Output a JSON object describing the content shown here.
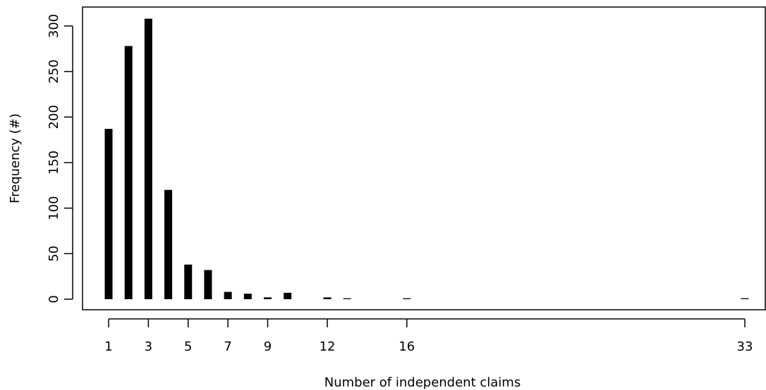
{
  "chart_data": {
    "type": "bar",
    "xlabel": "Number of independent claims",
    "ylabel": "Frequency (#)",
    "x": [
      1,
      2,
      3,
      4,
      5,
      6,
      7,
      8,
      9,
      10,
      12,
      13,
      16,
      33
    ],
    "values": [
      187,
      278,
      308,
      120,
      38,
      32,
      8,
      6,
      2,
      7,
      2,
      1,
      1,
      1
    ],
    "x_ticks": [
      1,
      3,
      5,
      7,
      9,
      12,
      16,
      33
    ],
    "y_ticks": [
      0,
      50,
      100,
      150,
      200,
      250,
      300
    ],
    "ylim": [
      0,
      320
    ],
    "grid": false,
    "legend": "none",
    "bar_color": "#000000"
  }
}
